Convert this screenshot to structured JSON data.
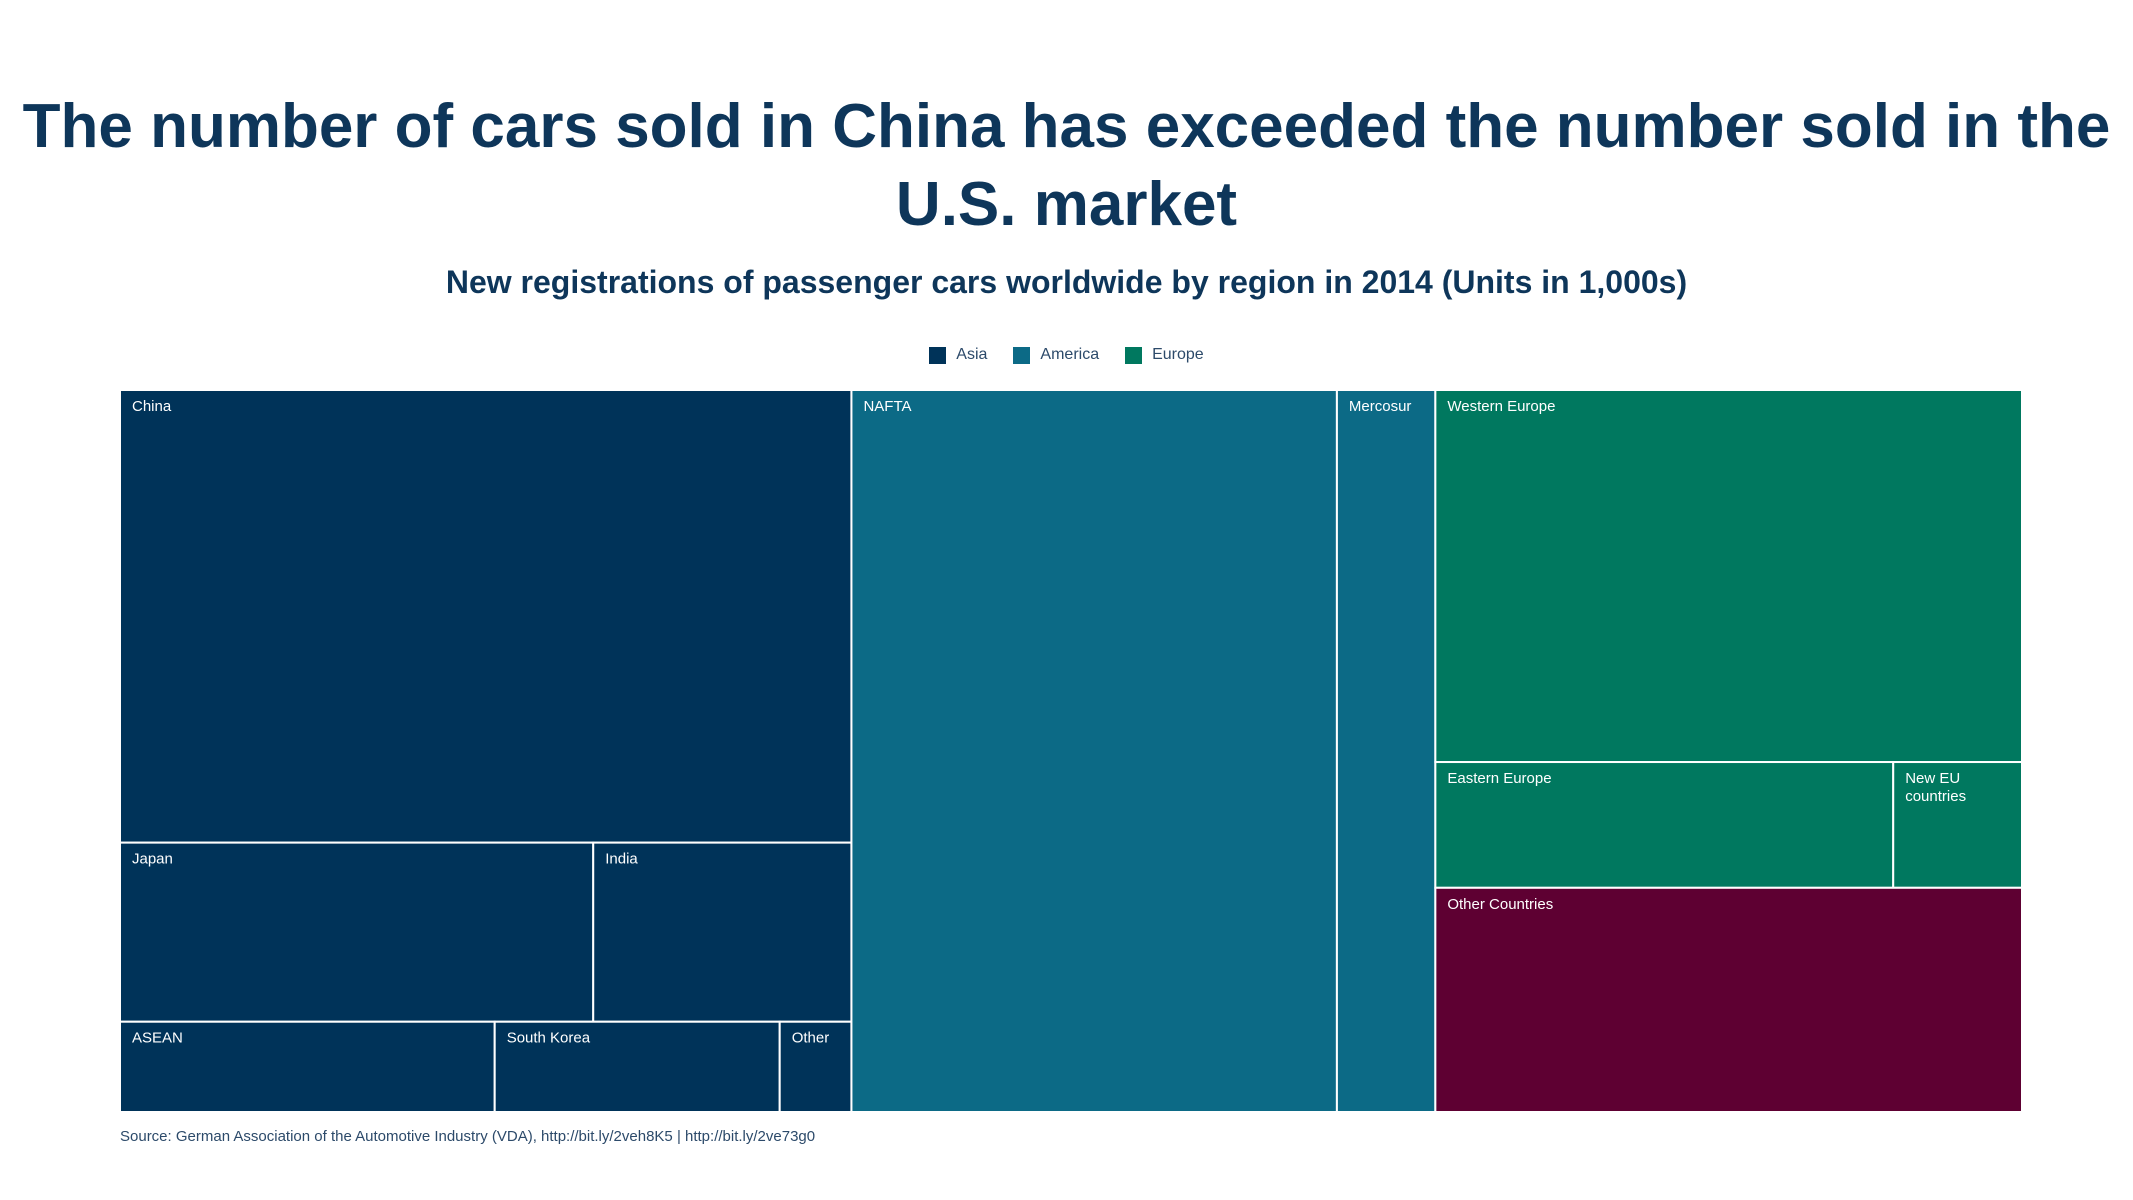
{
  "title": "The number of cars sold in China has exceeded the number sold in the U.S. market",
  "subtitle": "New registrations of passenger cars worldwide by region in 2014 (Units in 1,000s)",
  "source": "Source: German Association of the Automotive Industry (VDA), http://bit.ly/2veh8K5 | http://bit.ly/2ve73g0",
  "chart_data": {
    "type": "treemap",
    "legend": [
      {
        "name": "Asia",
        "color": "#003359"
      },
      {
        "name": "America",
        "color": "#0c6a86"
      },
      {
        "name": "Europe",
        "color": "#00785f"
      }
    ],
    "legend_placement": "top-center",
    "items": [
      {
        "name": "China",
        "group": "Asia",
        "value": 18400,
        "color": "#003359"
      },
      {
        "name": "Japan",
        "group": "Asia",
        "value": 4710,
        "color": "#003359"
      },
      {
        "name": "India",
        "group": "Asia",
        "value": 2570,
        "color": "#003359"
      },
      {
        "name": "ASEAN",
        "group": "Asia",
        "value": 1880,
        "color": "#003359"
      },
      {
        "name": "South Korea",
        "group": "Asia",
        "value": 1430,
        "color": "#003359"
      },
      {
        "name": "Other",
        "group": "Asia",
        "value": 360,
        "color": "#003359"
      },
      {
        "name": "NAFTA",
        "group": "America",
        "value": 19480,
        "color": "#0c6a86"
      },
      {
        "name": "Mercosur",
        "group": "America",
        "value": 3950,
        "color": "#0c6a86"
      },
      {
        "name": "Western Europe",
        "group": "Europe",
        "value": 12130,
        "color": "#00785f"
      },
      {
        "name": "Eastern Europe",
        "group": "Europe",
        "value": 3200,
        "color": "#00785f"
      },
      {
        "name": "New EU countries",
        "group": "Europe",
        "value": 900,
        "color": "#00785f"
      },
      {
        "name": "Other Countries",
        "group": "",
        "value": 7310,
        "color": "#5e0032"
      }
    ]
  }
}
